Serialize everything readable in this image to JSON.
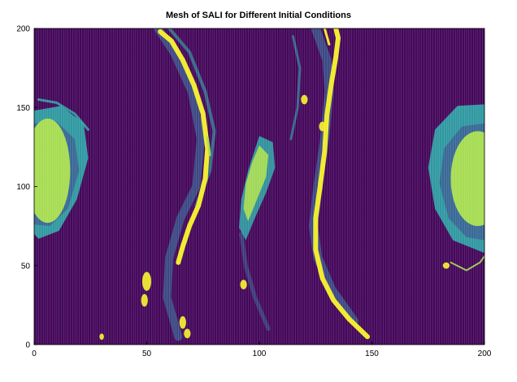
{
  "chart_data": {
    "type": "heatmap",
    "title": "Mesh of SALI for Different Initial Conditions",
    "xlabel": "",
    "ylabel": "",
    "xlim": [
      0,
      200
    ],
    "ylim": [
      0,
      200
    ],
    "x_ticks": [
      "0",
      "50",
      "100",
      "150",
      "200"
    ],
    "y_ticks": [
      "0",
      "50",
      "100",
      "150",
      "200"
    ],
    "grid": false,
    "colormap": "viridis",
    "colors": {
      "background": "#44075a",
      "mesh_line": "#ffffff",
      "blue": "#3a5f93",
      "teal": "#2fa8a8",
      "green": "#a6dc52",
      "yellow": "#f0ea2a"
    },
    "regions": [
      {
        "name": "left island",
        "level": "green",
        "center": [
          5,
          110
        ],
        "extent": "x 0-20, y 75-145"
      },
      {
        "name": "right island",
        "level": "green",
        "center": [
          197,
          105
        ],
        "extent": "x 180-200, y 60-150"
      },
      {
        "name": "central island",
        "level": "green",
        "center": [
          98,
          97
        ],
        "extent": "x 90-108, y 65-130"
      },
      {
        "name": "left yellow arc",
        "level": "yellow",
        "extent": "x 55-78, y 50-200"
      },
      {
        "name": "right yellow arc",
        "level": "yellow",
        "extent": "x 123-148, y 5-200"
      }
    ]
  }
}
